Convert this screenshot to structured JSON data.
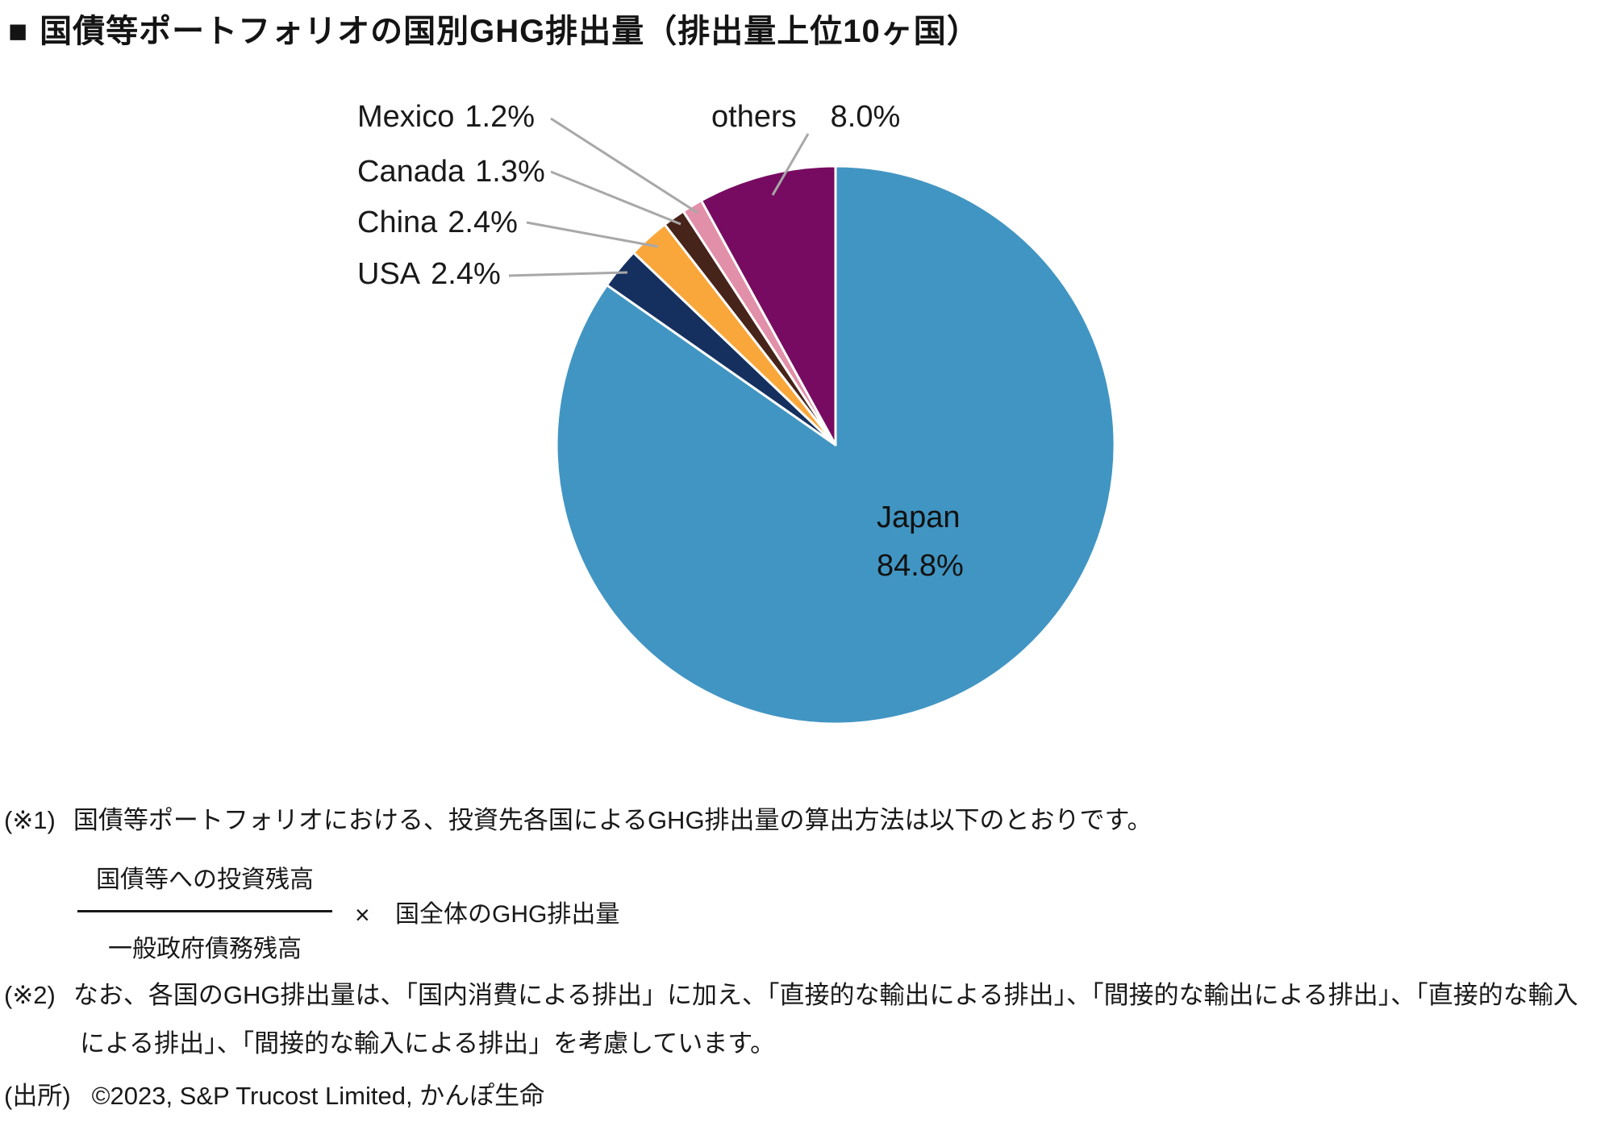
{
  "title": {
    "marker": "■",
    "text": "国債等ポートフォリオの国別GHG排出量（排出量上位10ヶ国）"
  },
  "chart_data": {
    "type": "pie",
    "title": "国債等ポートフォリオの国別GHG排出量（排出量上位10ヶ国）",
    "unit": "%",
    "direction": "clockwise",
    "start_angle": "12-oclock",
    "legend_position": "none (direct labels with leader lines)",
    "slice_border_color": "#FFFFFF",
    "leader_line_color": "#A8A8A8",
    "segments": [
      {
        "id": "japan",
        "label": "Japan",
        "value": 84.8,
        "display": "84.8%",
        "color": "#4195C2",
        "label_position": "inside"
      },
      {
        "id": "usa",
        "label": "USA",
        "value": 2.4,
        "display": "2.4%",
        "color": "#15305F",
        "label_position": "outside-left"
      },
      {
        "id": "china",
        "label": "China",
        "value": 2.4,
        "display": "2.4%",
        "color": "#F9A73B",
        "label_position": "outside-left"
      },
      {
        "id": "canada",
        "label": "Canada",
        "value": 1.3,
        "display": "1.3%",
        "color": "#47241A",
        "label_position": "outside-left"
      },
      {
        "id": "mexico",
        "label": "Mexico",
        "value": 1.2,
        "display": "1.2%",
        "color": "#E28FA9",
        "label_position": "outside-left"
      },
      {
        "id": "others",
        "label": "others",
        "value": 8.0,
        "display": "8.0%",
        "color": "#770B61",
        "label_position": "outside-top"
      }
    ]
  },
  "notes": {
    "note1_marker": "(※1)",
    "note1_text": "国債等ポートフォリオにおける、投資先各国によるGHG排出量の算出方法は以下のとおりです。",
    "formula": {
      "numerator": "国債等への投資残高",
      "denominator": "一般政府債務残高",
      "operator": "×",
      "multiplicand": "国全体のGHG排出量"
    },
    "note2_marker": "(※2)",
    "note2_line1": "なお、各国のGHG排出量は、「国内消費による排出」に加え、「直接的な輸出による排出」、「間接的な輸出による排出」、「直接的な輸入",
    "note2_line2": "による排出」、「間接的な輸入による排出」を考慮しています。",
    "source_marker": "(出所)",
    "source_text": "©2023, S&P Trucost Limited, かんぽ生命"
  }
}
